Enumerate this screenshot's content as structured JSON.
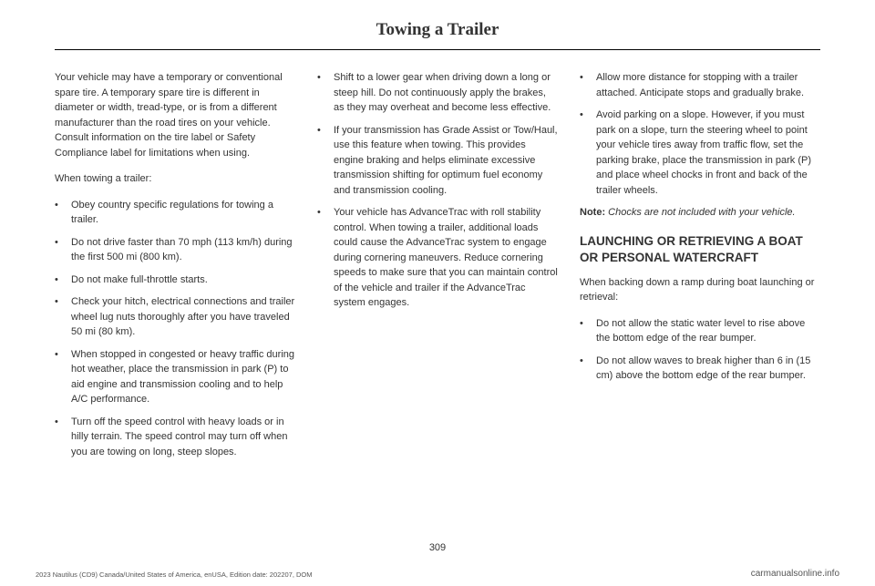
{
  "header": {
    "title": "Towing a Trailer"
  },
  "col1": {
    "p1": "Your vehicle may have a temporary or conventional spare tire. A temporary spare tire is different in diameter or width, tread-type, or is from a different manufacturer than the road tires on your vehicle. Consult information on the tire label or Safety Compliance label for limitations when using.",
    "p2": "When towing a trailer:",
    "items": [
      "Obey country specific regulations for towing a trailer.",
      "Do not drive faster than 70 mph (113 km/h) during the first 500 mi (800 km).",
      "Do not make full-throttle starts.",
      "Check your hitch, electrical connections and trailer wheel lug nuts thoroughly after you have traveled 50 mi (80 km).",
      "When stopped in congested or heavy traffic during hot weather, place the transmission in park (P) to aid engine and transmission cooling and to help A/C performance.",
      "Turn off the speed control with heavy loads or in hilly terrain. The speed control may turn off when you are towing on long, steep slopes."
    ]
  },
  "col2": {
    "items": [
      "Shift to a lower gear when driving down a long or steep hill. Do not continuously apply the brakes, as they may overheat and become less effective.",
      "If your transmission has Grade Assist or Tow/Haul, use this feature when towing. This provides engine braking and helps eliminate excessive transmission shifting for optimum fuel economy and transmission cooling.",
      "Your vehicle has AdvanceTrac with roll stability control. When towing a trailer, additional loads could cause the AdvanceTrac system to engage during cornering maneuvers. Reduce cornering speeds to make sure that you can maintain control of the vehicle and trailer if the AdvanceTrac system engages."
    ]
  },
  "col3": {
    "items_top": [
      "Allow more distance for stopping with a trailer attached. Anticipate stops and gradually brake.",
      "Avoid parking on a slope. However, if you must park on a slope, turn the steering wheel to point your vehicle tires away from traffic flow, set the parking brake, place the transmission in park (P) and place wheel chocks in front and back of the trailer wheels."
    ],
    "note_label": "Note:",
    "note_body": " Chocks are not included with your vehicle.",
    "heading": "LAUNCHING OR RETRIEVING A BOAT OR PERSONAL WATERCRAFT",
    "p3": "When backing down a ramp during boat launching or retrieval:",
    "items_bot": [
      "Do not allow the static water level to rise above the bottom edge of the rear bumper.",
      "Do not allow waves to break higher than 6 in (15 cm) above the bottom edge of the rear bumper."
    ]
  },
  "page_number": "309",
  "footer_left": "2023 Nautilus (CD9) Canada/United States of America, enUSA, Edition date: 202207, DOM",
  "footer_right": "carmanualsonline.info"
}
